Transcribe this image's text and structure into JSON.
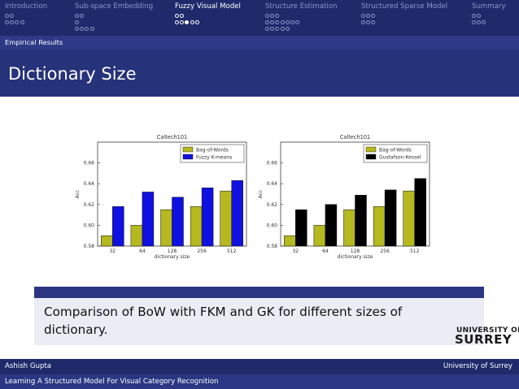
{
  "nav": {
    "sections": [
      {
        "label": "Introduction",
        "rows": [
          2,
          4
        ],
        "active": false
      },
      {
        "label": "Sub-space Embedding",
        "rows": [
          2,
          1,
          4
        ],
        "active": false
      },
      {
        "label": "Fuzzy Visual Model",
        "rows": [
          2,
          5
        ],
        "active": true,
        "current_row": 1,
        "current_index": 2
      },
      {
        "label": "Structure Estimation",
        "rows": [
          3,
          7,
          5
        ],
        "active": false
      },
      {
        "label": "Structured Sparse Model",
        "rows": [
          3,
          3
        ],
        "active": false
      },
      {
        "label": "Summary",
        "rows": [
          2,
          3
        ],
        "active": false
      }
    ]
  },
  "section_title": "Empirical Results",
  "slide_title": "Dictionary Size",
  "charts": [
    {
      "type": "bar",
      "title": "Caltech101",
      "xlabel": "dictionary size",
      "ylabel": "Acc",
      "categories": [
        "32",
        "64",
        "128",
        "256",
        "512"
      ],
      "ylim": [
        0.58,
        0.68
      ],
      "yticks": [
        "0.58",
        "0.60",
        "0.62",
        "0.64",
        "0.66"
      ],
      "legend": "top-right",
      "series": [
        {
          "name": "Bag-of-Words",
          "color": "#b5b81e",
          "values": [
            0.59,
            0.6,
            0.615,
            0.618,
            0.633
          ]
        },
        {
          "name": "Fuzzy K-means",
          "color": "#1010e0",
          "values": [
            0.618,
            0.632,
            0.627,
            0.636,
            0.643
          ]
        }
      ]
    },
    {
      "type": "bar",
      "title": "Caltech101",
      "xlabel": "dictionary size",
      "ylabel": "Acc",
      "categories": [
        "32",
        "64",
        "128",
        "256",
        "512"
      ],
      "ylim": [
        0.58,
        0.68
      ],
      "yticks": [
        "0.58",
        "0.60",
        "0.62",
        "0.64",
        "0.66"
      ],
      "legend": "top-right",
      "series": [
        {
          "name": "Bag-of-Words",
          "color": "#b5b81e",
          "values": [
            0.59,
            0.6,
            0.615,
            0.618,
            0.633
          ]
        },
        {
          "name": "Gustafson-Kessel",
          "color": "#000000",
          "values": [
            0.615,
            0.62,
            0.629,
            0.634,
            0.645
          ]
        }
      ]
    }
  ],
  "caption": "Comparison of BoW with FKM and GK for different sizes of dictionary.",
  "logo": {
    "line1": "UNIVERSITY OF",
    "line2": "SURREY"
  },
  "footer": {
    "author": "Ashish Gupta",
    "institution": "University of Surrey",
    "talk_title": "Learning A Structured Model For Visual Category Recognition"
  }
}
